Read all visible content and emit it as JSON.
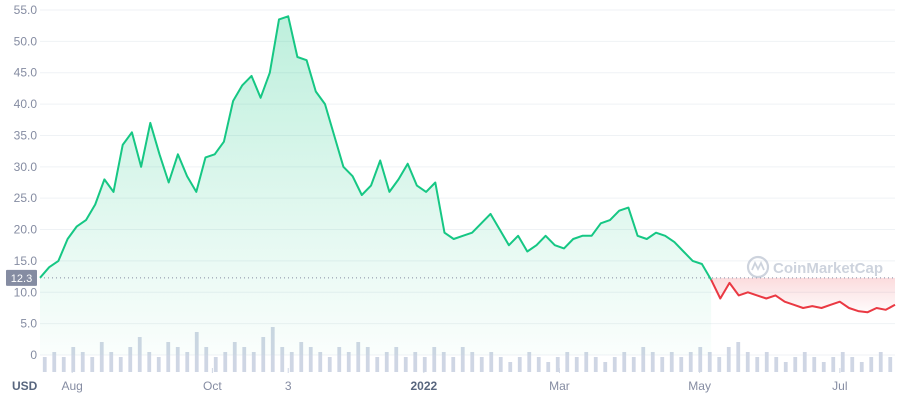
{
  "chart_data": {
    "type": "line",
    "currency_label": "USD",
    "watermark_text": "CoinMarketCap",
    "current_price_label": "12.3",
    "reference_value": 12.3,
    "ylim": [
      0,
      55
    ],
    "y_ticks": [
      {
        "value": 0,
        "label": "0"
      },
      {
        "value": 5,
        "label": "5.0"
      },
      {
        "value": 10,
        "label": "10.0"
      },
      {
        "value": 15,
        "label": "15.0"
      },
      {
        "value": 20,
        "label": "20.0"
      },
      {
        "value": 25,
        "label": "25.0"
      },
      {
        "value": 30,
        "label": "30.0"
      },
      {
        "value": 35,
        "label": "35.0"
      },
      {
        "value": 40,
        "label": "40.0"
      },
      {
        "value": 45,
        "label": "45.0"
      },
      {
        "value": 50,
        "label": "50.0"
      },
      {
        "value": 55,
        "label": "55.0"
      }
    ],
    "x_range": [
      "2021-07-18",
      "2022-07-25"
    ],
    "x_ticks": [
      {
        "date": "2021-08-01",
        "label": "Aug",
        "bold": false
      },
      {
        "date": "2021-10-01",
        "label": "Oct",
        "bold": false
      },
      {
        "date": "2021-11-03",
        "label": "3",
        "bold": false
      },
      {
        "date": "2022-01-01",
        "label": "2022",
        "bold": true
      },
      {
        "date": "2022-03-01",
        "label": "Mar",
        "bold": false
      },
      {
        "date": "2022-05-01",
        "label": "May",
        "bold": false
      },
      {
        "date": "2022-07-01",
        "label": "Jul",
        "bold": false
      }
    ],
    "colors": {
      "up_line": "#16c784",
      "down_line": "#ea3943",
      "grid": "#eff2f5",
      "axis_text": "#858ca2",
      "volume": "#cfd6e4",
      "price_label_bg": "#858ca2"
    },
    "grid": true,
    "series": [
      {
        "x": [
          "2021-07-18",
          "2021-07-22",
          "2021-07-26",
          "2021-07-30",
          "2021-08-03",
          "2021-08-07",
          "2021-08-11",
          "2021-08-15",
          "2021-08-19",
          "2021-08-23",
          "2021-08-27",
          "2021-08-31",
          "2021-09-04",
          "2021-09-08",
          "2021-09-12",
          "2021-09-16",
          "2021-09-20",
          "2021-09-24",
          "2021-09-28",
          "2021-10-02",
          "2021-10-06",
          "2021-10-10",
          "2021-10-14",
          "2021-10-18",
          "2021-10-22",
          "2021-10-26",
          "2021-10-30",
          "2021-11-03",
          "2021-11-07",
          "2021-11-11",
          "2021-11-15",
          "2021-11-19",
          "2021-11-23",
          "2021-11-27",
          "2021-12-01",
          "2021-12-05",
          "2021-12-09",
          "2021-12-13",
          "2021-12-17",
          "2021-12-21",
          "2021-12-25",
          "2021-12-29",
          "2022-01-02",
          "2022-01-06",
          "2022-01-10",
          "2022-01-14",
          "2022-01-18",
          "2022-01-22",
          "2022-01-26",
          "2022-01-30",
          "2022-02-03",
          "2022-02-07",
          "2022-02-11",
          "2022-02-15",
          "2022-02-19",
          "2022-02-23",
          "2022-02-27",
          "2022-03-03",
          "2022-03-07",
          "2022-03-11",
          "2022-03-15",
          "2022-03-19",
          "2022-03-23",
          "2022-03-27",
          "2022-03-31",
          "2022-04-04",
          "2022-04-08",
          "2022-04-12",
          "2022-04-16",
          "2022-04-20",
          "2022-04-24",
          "2022-04-28",
          "2022-05-02",
          "2022-05-06"
        ],
        "values": [
          12.3,
          14.0,
          15.0,
          18.5,
          20.5,
          21.5,
          24.0,
          28.0,
          26.0,
          33.5,
          35.5,
          30.0,
          37.0,
          32.0,
          27.5,
          32.0,
          28.5,
          26.0,
          31.5,
          32.0,
          34.0,
          40.5,
          43.0,
          44.5,
          41.0,
          45.0,
          53.5,
          54.0,
          47.5,
          47.0,
          42.0,
          40.0,
          35.0,
          30.0,
          28.5,
          25.5,
          27.0,
          31.0,
          26.0,
          28.0,
          30.5,
          27.0,
          26.0,
          27.5,
          19.5,
          18.5,
          19.0,
          19.5,
          21.0,
          22.5,
          20.0,
          17.5,
          19.0,
          16.5,
          17.5,
          19.0,
          17.5,
          17.0,
          18.5,
          19.0,
          19.0,
          21.0,
          21.5,
          23.0,
          23.5,
          19.0,
          18.5,
          19.5,
          19.0,
          18.0,
          16.5,
          15.0,
          14.5,
          12.0
        ]
      },
      {
        "x": [
          "2022-05-06",
          "2022-05-10",
          "2022-05-14",
          "2022-05-18",
          "2022-05-22",
          "2022-05-26",
          "2022-05-30",
          "2022-06-03",
          "2022-06-07",
          "2022-06-11",
          "2022-06-15",
          "2022-06-19",
          "2022-06-23",
          "2022-06-27",
          "2022-07-01",
          "2022-07-05",
          "2022-07-09",
          "2022-07-13",
          "2022-07-17",
          "2022-07-21",
          "2022-07-25"
        ],
        "values": [
          12.0,
          9.0,
          11.5,
          9.5,
          10.0,
          9.5,
          9.0,
          9.5,
          8.5,
          8.0,
          7.5,
          7.8,
          7.5,
          8.0,
          8.5,
          7.5,
          7.0,
          6.8,
          7.5,
          7.2,
          8.0
        ]
      }
    ],
    "volume": [
      3,
      4,
      3,
      5,
      4,
      3,
      6,
      4,
      3,
      5,
      7,
      4,
      3,
      6,
      5,
      4,
      8,
      5,
      3,
      4,
      6,
      5,
      4,
      7,
      9,
      5,
      4,
      6,
      5,
      4,
      3,
      5,
      4,
      6,
      5,
      3,
      4,
      5,
      3,
      4,
      3,
      5,
      4,
      3,
      5,
      4,
      3,
      4,
      3,
      2,
      3,
      4,
      3,
      2,
      3,
      4,
      3,
      4,
      3,
      2,
      3,
      4,
      3,
      5,
      4,
      3,
      4,
      3,
      4,
      5,
      4,
      3,
      5,
      6,
      4,
      3,
      4,
      3,
      2,
      3,
      4,
      3,
      2,
      3,
      4,
      3,
      2,
      3,
      4,
      3
    ]
  }
}
